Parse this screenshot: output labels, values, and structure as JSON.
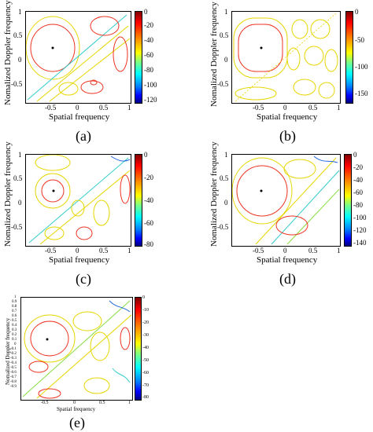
{
  "figure": {
    "ylabel": "Nomalized Doppler frequency",
    "xlabel": "Spatial frequency",
    "panels": [
      {
        "id": "a",
        "caption": "(a)",
        "x_ticks": [
          "-0.5",
          "0",
          "0.5",
          "1"
        ],
        "y_ticks": [
          "1",
          "0.5",
          "0",
          "-0.5"
        ],
        "colorbar_ticks": [
          "0",
          "-20",
          "-40",
          "-60",
          "-80",
          "-100",
          "-120"
        ]
      },
      {
        "id": "b",
        "caption": "(b)",
        "x_ticks": [
          "-0.5",
          "0",
          "0.5",
          "1"
        ],
        "y_ticks": [
          "1",
          "0.5",
          "0",
          "-0.5"
        ],
        "colorbar_ticks": [
          "0",
          "-50",
          "-100",
          "-150"
        ]
      },
      {
        "id": "c",
        "caption": "(c)",
        "x_ticks": [
          "-0.5",
          "0",
          "0.5",
          "1"
        ],
        "y_ticks": [
          "1",
          "0.5",
          "0",
          "-0.5"
        ],
        "colorbar_ticks": [
          "0",
          "-20",
          "-40",
          "-60",
          "-80"
        ]
      },
      {
        "id": "d",
        "caption": "(d)",
        "x_ticks": [
          "-0.5",
          "0",
          "0.5",
          "1"
        ],
        "y_ticks": [
          "1",
          "0.5",
          "0",
          "-0.5"
        ],
        "colorbar_ticks": [
          "0",
          "-20",
          "-40",
          "-60",
          "-80",
          "-100",
          "-120",
          "-140"
        ]
      },
      {
        "id": "e",
        "caption": "(e)",
        "x_ticks": [
          "-0.5",
          "0",
          "0.5",
          "1"
        ],
        "y_ticks": [
          "1",
          "0.9",
          "0.8",
          "0.7",
          "0.6",
          "0.5",
          "0.4",
          "0.3",
          "0.2",
          "0.1",
          "0",
          "-0.1",
          "-0.2",
          "-0.3",
          "-0.4",
          "-0.5",
          "-0.6",
          "-0.7",
          "-0.8",
          "-0.9"
        ],
        "colorbar_ticks": [
          "0",
          "-10",
          "-20",
          "-30",
          "-40",
          "-50",
          "-60",
          "-70",
          "-80"
        ]
      }
    ]
  }
}
